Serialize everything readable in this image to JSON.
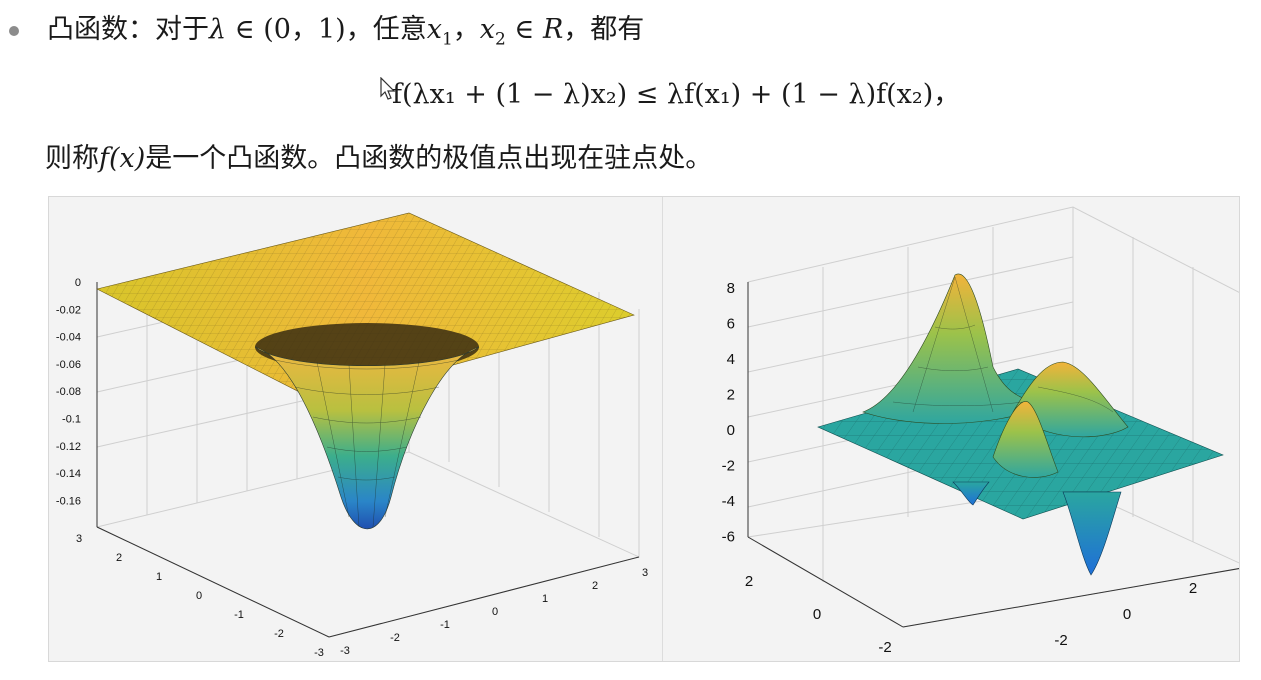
{
  "text": {
    "line1_a": "凸函数：对于",
    "lambda": "λ",
    "in1": " ∈ (0，1)，",
    "line1_b": "任意",
    "x1": "x",
    "sub1": "1",
    "comma": "，",
    "x2": "x",
    "sub2": "2",
    "inR": " ∈ R",
    "line1_c": "，都有",
    "formula": "f(λx₁ + (1 − λ)x₂) ≤ λf(x₁) + (1 − λ)f(x₂)，",
    "line3_a": "则称",
    "fx": "f(x)",
    "line3_b": "是一个凸函数。凸函数的极值点出现在驻点处。"
  },
  "left_plot": {
    "z_ticks": [
      "0",
      "-0.02",
      "-0.04",
      "-0.06",
      "-0.08",
      "-0.1",
      "-0.12",
      "-0.14",
      "-0.16"
    ],
    "y_ticks": [
      "3",
      "2",
      "1",
      "0",
      "-1",
      "-2",
      "-3"
    ],
    "x_ticks": [
      "-3",
      "-2",
      "-1",
      "0",
      "1",
      "2",
      "3"
    ]
  },
  "right_plot": {
    "z_ticks": [
      "8",
      "6",
      "4",
      "2",
      "0",
      "-2",
      "-4",
      "-6"
    ],
    "y_ticks": [
      "2",
      "0",
      "-2"
    ],
    "x_ticks": [
      "-2",
      "0",
      "2"
    ]
  },
  "colors": {
    "yellow": "#e8d32a",
    "orange": "#f2a93b",
    "teal": "#2aa6a0",
    "blue": "#1e6fd9",
    "green": "#8cc24a"
  }
}
